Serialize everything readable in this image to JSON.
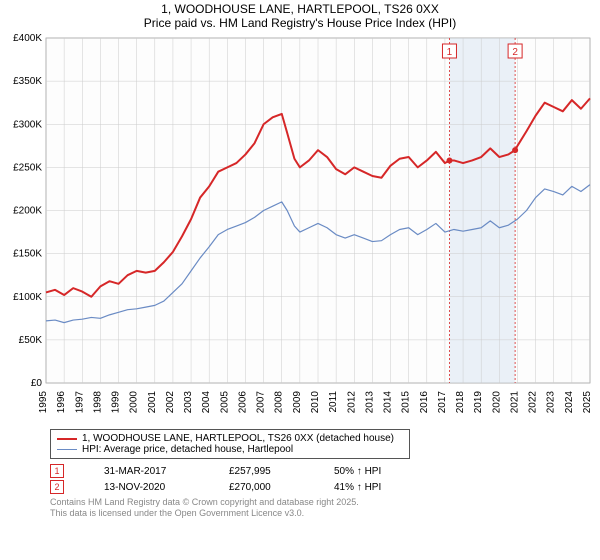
{
  "title": {
    "line1": "1, WOODHOUSE LANE, HARTLEPOOL, TS26 0XX",
    "line2": "Price paid vs. HM Land Registry's House Price Index (HPI)"
  },
  "chart": {
    "type": "line",
    "plot_background": "#fdfdfd",
    "grid_color": "#cccccc",
    "axis_fontsize": 10,
    "x": {
      "label_years": [
        "1995",
        "1996",
        "1997",
        "1998",
        "1999",
        "2000",
        "2001",
        "2002",
        "2003",
        "2004",
        "2005",
        "2006",
        "2007",
        "2008",
        "2009",
        "2010",
        "2011",
        "2012",
        "2013",
        "2014",
        "2015",
        "2016",
        "2017",
        "2018",
        "2019",
        "2020",
        "2021",
        "2022",
        "2023",
        "2024",
        "2025"
      ],
      "min": 1995,
      "max": 2025
    },
    "y": {
      "min": 0,
      "max": 400000,
      "ticks": [
        0,
        50000,
        100000,
        150000,
        200000,
        250000,
        300000,
        350000,
        400000
      ],
      "tick_labels": [
        "£0",
        "£50K",
        "£100K",
        "£150K",
        "£200K",
        "£250K",
        "£300K",
        "£350K",
        "£400K"
      ]
    },
    "highlight_band": {
      "from": 2017.25,
      "to": 2020.87,
      "fill": "#dbe6f3",
      "opacity": 0.55
    },
    "marker_lines": [
      {
        "x": 2017.25,
        "label": "1",
        "color": "#d62728",
        "dash": "2,2"
      },
      {
        "x": 2020.87,
        "label": "2",
        "color": "#d62728",
        "dash": "2,2"
      }
    ],
    "series": [
      {
        "name": "1, WOODHOUSE LANE, HARTLEPOOL, TS26 0XX (detached house)",
        "color": "#d62728",
        "line_width": 2,
        "data": [
          [
            1995,
            105000
          ],
          [
            1995.5,
            108000
          ],
          [
            1996,
            102000
          ],
          [
            1996.5,
            110000
          ],
          [
            1997,
            106000
          ],
          [
            1997.5,
            100000
          ],
          [
            1998,
            112000
          ],
          [
            1998.5,
            118000
          ],
          [
            1999,
            115000
          ],
          [
            1999.5,
            125000
          ],
          [
            2000,
            130000
          ],
          [
            2000.5,
            128000
          ],
          [
            2001,
            130000
          ],
          [
            2001.5,
            140000
          ],
          [
            2002,
            152000
          ],
          [
            2002.5,
            170000
          ],
          [
            2003,
            190000
          ],
          [
            2003.5,
            215000
          ],
          [
            2004,
            228000
          ],
          [
            2004.5,
            245000
          ],
          [
            2005,
            250000
          ],
          [
            2005.5,
            255000
          ],
          [
            2006,
            265000
          ],
          [
            2006.5,
            278000
          ],
          [
            2007,
            300000
          ],
          [
            2007.5,
            308000
          ],
          [
            2008,
            312000
          ],
          [
            2008.3,
            290000
          ],
          [
            2008.7,
            260000
          ],
          [
            2009,
            250000
          ],
          [
            2009.5,
            258000
          ],
          [
            2010,
            270000
          ],
          [
            2010.5,
            262000
          ],
          [
            2011,
            248000
          ],
          [
            2011.5,
            242000
          ],
          [
            2012,
            250000
          ],
          [
            2012.5,
            245000
          ],
          [
            2013,
            240000
          ],
          [
            2013.5,
            238000
          ],
          [
            2014,
            252000
          ],
          [
            2014.5,
            260000
          ],
          [
            2015,
            262000
          ],
          [
            2015.5,
            250000
          ],
          [
            2016,
            258000
          ],
          [
            2016.5,
            268000
          ],
          [
            2017,
            255000
          ],
          [
            2017.25,
            257995
          ],
          [
            2017.5,
            258000
          ],
          [
            2018,
            255000
          ],
          [
            2018.5,
            258000
          ],
          [
            2019,
            262000
          ],
          [
            2019.5,
            272000
          ],
          [
            2020,
            262000
          ],
          [
            2020.5,
            265000
          ],
          [
            2020.87,
            270000
          ],
          [
            2021,
            275000
          ],
          [
            2021.5,
            292000
          ],
          [
            2022,
            310000
          ],
          [
            2022.5,
            325000
          ],
          [
            2023,
            320000
          ],
          [
            2023.5,
            315000
          ],
          [
            2024,
            328000
          ],
          [
            2024.5,
            318000
          ],
          [
            2025,
            330000
          ]
        ]
      },
      {
        "name": "HPI: Average price, detached house, Hartlepool",
        "color": "#6a8bc4",
        "line_width": 1.2,
        "data": [
          [
            1995,
            72000
          ],
          [
            1995.5,
            73000
          ],
          [
            1996,
            70000
          ],
          [
            1996.5,
            73000
          ],
          [
            1997,
            74000
          ],
          [
            1997.5,
            76000
          ],
          [
            1998,
            75000
          ],
          [
            1998.5,
            79000
          ],
          [
            1999,
            82000
          ],
          [
            1999.5,
            85000
          ],
          [
            2000,
            86000
          ],
          [
            2000.5,
            88000
          ],
          [
            2001,
            90000
          ],
          [
            2001.5,
            95000
          ],
          [
            2002,
            105000
          ],
          [
            2002.5,
            115000
          ],
          [
            2003,
            130000
          ],
          [
            2003.5,
            145000
          ],
          [
            2004,
            158000
          ],
          [
            2004.5,
            172000
          ],
          [
            2005,
            178000
          ],
          [
            2005.5,
            182000
          ],
          [
            2006,
            186000
          ],
          [
            2006.5,
            192000
          ],
          [
            2007,
            200000
          ],
          [
            2007.5,
            205000
          ],
          [
            2008,
            210000
          ],
          [
            2008.3,
            200000
          ],
          [
            2008.7,
            182000
          ],
          [
            2009,
            175000
          ],
          [
            2009.5,
            180000
          ],
          [
            2010,
            185000
          ],
          [
            2010.5,
            180000
          ],
          [
            2011,
            172000
          ],
          [
            2011.5,
            168000
          ],
          [
            2012,
            172000
          ],
          [
            2012.5,
            168000
          ],
          [
            2013,
            164000
          ],
          [
            2013.5,
            165000
          ],
          [
            2014,
            172000
          ],
          [
            2014.5,
            178000
          ],
          [
            2015,
            180000
          ],
          [
            2015.5,
            172000
          ],
          [
            2016,
            178000
          ],
          [
            2016.5,
            185000
          ],
          [
            2017,
            175000
          ],
          [
            2017.5,
            178000
          ],
          [
            2018,
            176000
          ],
          [
            2018.5,
            178000
          ],
          [
            2019,
            180000
          ],
          [
            2019.5,
            188000
          ],
          [
            2020,
            180000
          ],
          [
            2020.5,
            183000
          ],
          [
            2021,
            190000
          ],
          [
            2021.5,
            200000
          ],
          [
            2022,
            215000
          ],
          [
            2022.5,
            225000
          ],
          [
            2023,
            222000
          ],
          [
            2023.5,
            218000
          ],
          [
            2024,
            228000
          ],
          [
            2024.5,
            222000
          ],
          [
            2025,
            230000
          ]
        ]
      }
    ]
  },
  "legend": {
    "items": [
      {
        "label": "1, WOODHOUSE LANE, HARTLEPOOL, TS26 0XX (detached house)",
        "color": "#d62728",
        "width": 2
      },
      {
        "label": "HPI: Average price, detached house, Hartlepool",
        "color": "#6a8bc4",
        "width": 1.2
      }
    ]
  },
  "sale_markers": [
    {
      "num": "1",
      "date": "31-MAR-2017",
      "price": "£257,995",
      "hpi_diff": "50% ↑ HPI"
    },
    {
      "num": "2",
      "date": "13-NOV-2020",
      "price": "£270,000",
      "hpi_diff": "41% ↑ HPI"
    }
  ],
  "copyright": {
    "line1": "Contains HM Land Registry data © Crown copyright and database right 2025.",
    "line2": "This data is licensed under the Open Government Licence v3.0."
  }
}
